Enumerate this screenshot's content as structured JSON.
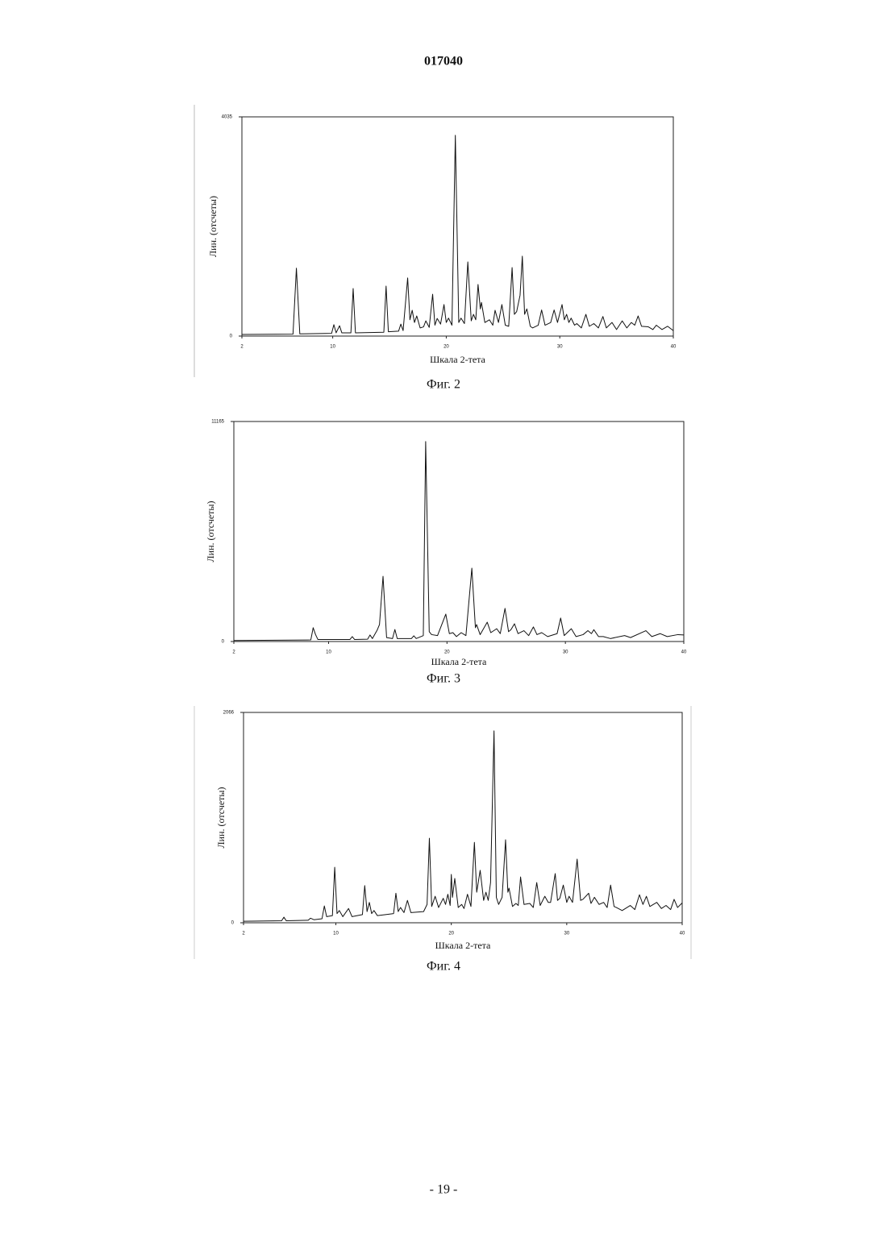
{
  "header": {
    "number": "017040"
  },
  "footer": {
    "page": "- 19 -"
  },
  "chart_data": [
    {
      "type": "line",
      "xlabel": "Шкала 2-тета",
      "ylabel": "Лин. (отсчеты)",
      "caption": "Фиг. 2",
      "color": "#111111",
      "xlim": [
        2,
        40
      ],
      "xticks": [
        2,
        10,
        20,
        30,
        40
      ],
      "ylim": [
        0,
        4035
      ],
      "yticks": [
        0,
        4035
      ],
      "x": [
        2,
        6.5,
        6.8,
        7.1,
        9.9,
        10.1,
        10.3,
        10.6,
        10.8,
        11.6,
        11.8,
        12,
        14.5,
        14.7,
        14.9,
        15.8,
        16,
        16.2,
        16.6,
        16.8,
        17,
        17.2,
        17.4,
        17.7,
        18,
        18.2,
        18.5,
        18.8,
        19,
        19.2,
        19.5,
        19.8,
        20,
        20.2,
        20.5,
        20.8,
        21.1,
        21.3,
        21.6,
        21.9,
        22.2,
        22.4,
        22.6,
        22.8,
        23,
        23.1,
        23.4,
        23.8,
        24.1,
        24.3,
        24.6,
        24.9,
        25.2,
        25.5,
        25.8,
        26,
        26.2,
        26.5,
        26.7,
        26.9,
        27.1,
        27.4,
        27.6,
        28.1,
        28.4,
        28.7,
        29.2,
        29.5,
        29.8,
        30.2,
        30.4,
        30.6,
        30.8,
        31,
        31.3,
        31.5,
        31.9,
        32.3,
        32.6,
        33,
        33.4,
        33.8,
        34.1,
        34.6,
        35,
        35.5,
        35.9,
        36.3,
        36.6,
        36.9,
        37.2,
        37.8,
        38.2,
        38.5,
        39,
        39.5,
        40
      ],
      "values": [
        30,
        35,
        1250,
        40,
        50,
        210,
        60,
        190,
        60,
        60,
        875,
        60,
        70,
        920,
        80,
        90,
        220,
        100,
        1070,
        300,
        475,
        250,
        370,
        150,
        170,
        280,
        160,
        770,
        200,
        325,
        220,
        580,
        250,
        330,
        200,
        3695,
        250,
        330,
        230,
        1365,
        280,
        400,
        300,
        950,
        500,
        620,
        250,
        300,
        200,
        475,
        250,
        580,
        200,
        180,
        1260,
        400,
        450,
        750,
        1470,
        400,
        500,
        180,
        150,
        200,
        480,
        200,
        250,
        480,
        250,
        580,
        300,
        400,
        250,
        330,
        200,
        230,
        150,
        400,
        180,
        230,
        150,
        360,
        150,
        250,
        120,
        280,
        150,
        250,
        200,
        370,
        180,
        170,
        120,
        200,
        120,
        180,
        100
      ]
    },
    {
      "type": "line",
      "xlabel": "Шкала 2-тета",
      "ylabel": "Лин. (отсчеты)",
      "caption": "Фиг. 3",
      "color": "#111111",
      "xlim": [
        2,
        40
      ],
      "xticks": [
        2,
        10,
        20,
        30,
        40
      ],
      "ylim": [
        0,
        11165
      ],
      "yticks": [
        0,
        11165
      ],
      "x": [
        2,
        8.5,
        8.7,
        8.9,
        9.1,
        11.8,
        12,
        12.2,
        13.3,
        13.5,
        13.7,
        14.1,
        14.3,
        14.6,
        14.9,
        15.4,
        15.6,
        15.8,
        17,
        17.2,
        17.4,
        18,
        18.2,
        18.5,
        18.7,
        19.2,
        19.9,
        20.2,
        20.5,
        20.8,
        21.2,
        21.6,
        22.1,
        22.4,
        22.5,
        22.8,
        23.4,
        23.7,
        24.2,
        24.5,
        24.9,
        25.2,
        25.4,
        25.7,
        26,
        26.5,
        26.9,
        27.3,
        27.6,
        28,
        28.5,
        29.3,
        29.6,
        29.9,
        30.5,
        30.9,
        31.5,
        31.9,
        32.2,
        32.4,
        32.8,
        33.2,
        33.8,
        35,
        35.5,
        36.8,
        37.3,
        38,
        38.6,
        39.5,
        40
      ],
      "values": [
        50,
        80,
        700,
        350,
        100,
        100,
        250,
        100,
        120,
        330,
        150,
        570,
        860,
        3310,
        200,
        150,
        610,
        150,
        150,
        290,
        150,
        300,
        10150,
        500,
        350,
        300,
        1390,
        400,
        450,
        250,
        450,
        300,
        3720,
        700,
        860,
        350,
        980,
        450,
        650,
        400,
        1680,
        500,
        600,
        900,
        400,
        550,
        300,
        740,
        350,
        450,
        250,
        400,
        1190,
        300,
        650,
        250,
        350,
        550,
        400,
        600,
        250,
        250,
        150,
        300,
        200,
        550,
        250,
        400,
        250,
        350,
        330
      ]
    },
    {
      "type": "line",
      "xlabel": "Шкала 2-тета",
      "ylabel": "Лин. (отсчеты)",
      "caption": "Фиг. 4",
      "color": "#111111",
      "xlim": [
        2,
        40
      ],
      "xticks": [
        2,
        10,
        20,
        30,
        40
      ],
      "ylim": [
        0,
        2066
      ],
      "yticks": [
        0,
        2066
      ],
      "x": [
        2,
        5.3,
        5.5,
        5.7,
        7.6,
        7.8,
        8.1,
        8.8,
        9,
        9.2,
        9.7,
        9.9,
        10.1,
        10.3,
        10.6,
        11.1,
        11.4,
        12.3,
        12.5,
        12.7,
        12.9,
        13.1,
        13.3,
        13.6,
        15,
        15.2,
        15.4,
        15.6,
        15.9,
        16.2,
        16.5,
        17.6,
        17.9,
        18.1,
        18.3,
        18.6,
        18.9,
        19.3,
        19.5,
        19.7,
        19.9,
        20,
        20.1,
        20.3,
        20.6,
        20.9,
        21.1,
        21.4,
        21.7,
        22,
        22.2,
        22.5,
        22.8,
        23,
        23.2,
        23.4,
        23.7,
        23.9,
        24.1,
        24.4,
        24.7,
        24.9,
        25,
        25.3,
        25.6,
        25.8,
        26,
        26.3,
        26.8,
        27.1,
        27.4,
        27.7,
        28.1,
        28.4,
        28.6,
        29,
        29.2,
        29.4,
        29.7,
        30,
        30.2,
        30.5,
        30.9,
        31.2,
        31.4,
        31.9,
        32.1,
        32.4,
        32.8,
        33.2,
        33.5,
        33.8,
        34.1,
        34.3,
        34.8,
        35.5,
        35.9,
        36.3,
        36.6,
        36.9,
        37.2,
        37.8,
        38.2,
        38.6,
        39,
        39.3,
        39.6,
        40
      ],
      "values": [
        15,
        20,
        55,
        20,
        25,
        45,
        30,
        40,
        165,
        60,
        70,
        545,
        90,
        120,
        60,
        140,
        60,
        80,
        365,
        110,
        200,
        90,
        120,
        70,
        90,
        290,
        110,
        150,
        100,
        220,
        100,
        110,
        180,
        830,
        160,
        260,
        150,
        240,
        180,
        280,
        170,
        475,
        250,
        435,
        150,
        180,
        140,
        280,
        160,
        790,
        300,
        515,
        220,
        300,
        220,
        395,
        1885,
        250,
        180,
        250,
        815,
        300,
        340,
        160,
        190,
        170,
        450,
        180,
        190,
        150,
        395,
        170,
        260,
        200,
        200,
        483,
        220,
        240,
        370,
        200,
        260,
        200,
        625,
        220,
        230,
        290,
        190,
        250,
        180,
        200,
        150,
        370,
        160,
        150,
        120,
        170,
        130,
        275,
        180,
        260,
        160,
        200,
        140,
        170,
        130,
        230,
        150,
        195
      ]
    }
  ]
}
